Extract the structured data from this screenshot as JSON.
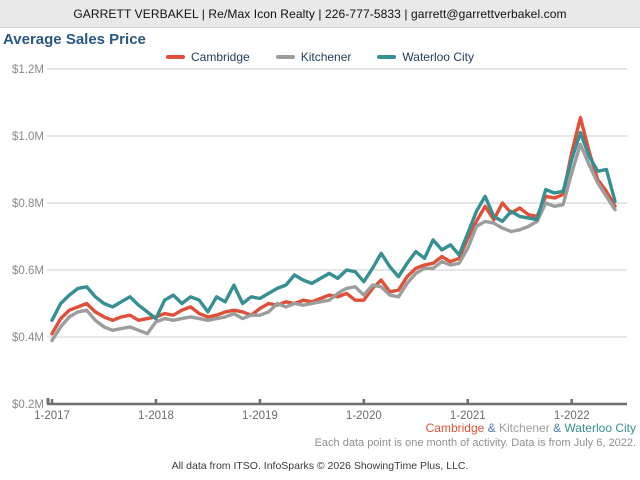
{
  "header": {
    "text": "GARRETT VERBAKEL | Re/Max Icon Realty | 226-777-5833 | garrett@garrettverbakel.com"
  },
  "title": "Average Sales Price",
  "colors": {
    "cambridge": "#e04f38",
    "kitchener": "#9c9e9d",
    "waterloo": "#368f92",
    "ampersand": "#4e7fae",
    "title_blue": "#2a5783",
    "grid": "#cccccc",
    "axis": "#6f6f6f",
    "y_label": "#8a8a8a",
    "x_label": "#6b6b6b"
  },
  "legend": {
    "items": [
      {
        "label": "Cambridge",
        "color": "#e04f38"
      },
      {
        "label": "Kitchener",
        "color": "#9c9e9d"
      },
      {
        "label": "Waterloo City",
        "color": "#368f92"
      }
    ]
  },
  "footer": {
    "separator": "&",
    "activity_note": "Each data point is one month of activity. Data is from July 6, 2022.",
    "copyright": "All data from ITSO. InfoSparks © 2026 ShowingTime Plus, LLC."
  },
  "chart_data": {
    "type": "line",
    "title": "Average Sales Price",
    "ylabel": "",
    "xlabel": "",
    "y_unit": "$M",
    "ylim": [
      0.2,
      1.2
    ],
    "y_tick_values": [
      0.2,
      0.4,
      0.6,
      0.8,
      1.0,
      1.2
    ],
    "y_tick_labels": [
      "$0.2M",
      "$0.4M",
      "$0.6M",
      "$0.8M",
      "$1.0M",
      "$1.2M"
    ],
    "x_tick_labels": [
      "1-2017",
      "1-2018",
      "1-2019",
      "1-2020",
      "1-2021",
      "1-2022"
    ],
    "grid": "horizontal",
    "legend_position": "top-center",
    "months": [
      "1-2017",
      "2-2017",
      "3-2017",
      "4-2017",
      "5-2017",
      "6-2017",
      "7-2017",
      "8-2017",
      "9-2017",
      "10-2017",
      "11-2017",
      "12-2017",
      "1-2018",
      "2-2018",
      "3-2018",
      "4-2018",
      "5-2018",
      "6-2018",
      "7-2018",
      "8-2018",
      "9-2018",
      "10-2018",
      "11-2018",
      "12-2018",
      "1-2019",
      "2-2019",
      "3-2019",
      "4-2019",
      "5-2019",
      "6-2019",
      "7-2019",
      "8-2019",
      "9-2019",
      "10-2019",
      "11-2019",
      "12-2019",
      "1-2020",
      "2-2020",
      "3-2020",
      "4-2020",
      "5-2020",
      "6-2020",
      "7-2020",
      "8-2020",
      "9-2020",
      "10-2020",
      "11-2020",
      "12-2020",
      "1-2021",
      "2-2021",
      "3-2021",
      "4-2021",
      "5-2021",
      "6-2021",
      "7-2021",
      "8-2021",
      "9-2021",
      "10-2021",
      "11-2021",
      "12-2021",
      "1-2022",
      "2-2022",
      "3-2022",
      "4-2022",
      "5-2022",
      "6-2022"
    ],
    "series": [
      {
        "name": "Cambridge",
        "color": "#e04f38",
        "values": [
          0.41,
          0.455,
          0.48,
          0.49,
          0.5,
          0.475,
          0.46,
          0.45,
          0.46,
          0.465,
          0.45,
          0.455,
          0.46,
          0.47,
          0.465,
          0.48,
          0.49,
          0.47,
          0.46,
          0.465,
          0.475,
          0.48,
          0.475,
          0.465,
          0.485,
          0.5,
          0.495,
          0.505,
          0.5,
          0.51,
          0.505,
          0.515,
          0.525,
          0.52,
          0.53,
          0.51,
          0.51,
          0.545,
          0.57,
          0.535,
          0.54,
          0.58,
          0.605,
          0.615,
          0.62,
          0.64,
          0.625,
          0.635,
          0.695,
          0.745,
          0.79,
          0.75,
          0.8,
          0.77,
          0.785,
          0.765,
          0.76,
          0.82,
          0.815,
          0.825,
          0.95,
          1.055,
          0.955,
          0.87,
          0.835,
          0.79
        ]
      },
      {
        "name": "Kitchener",
        "color": "#9c9e9d",
        "values": [
          0.39,
          0.43,
          0.46,
          0.475,
          0.48,
          0.45,
          0.43,
          0.42,
          0.425,
          0.43,
          0.42,
          0.41,
          0.445,
          0.455,
          0.45,
          0.455,
          0.46,
          0.455,
          0.45,
          0.455,
          0.46,
          0.47,
          0.455,
          0.465,
          0.465,
          0.475,
          0.5,
          0.49,
          0.5,
          0.495,
          0.5,
          0.505,
          0.51,
          0.53,
          0.545,
          0.55,
          0.525,
          0.555,
          0.55,
          0.525,
          0.52,
          0.56,
          0.59,
          0.605,
          0.605,
          0.625,
          0.615,
          0.62,
          0.665,
          0.73,
          0.745,
          0.74,
          0.725,
          0.715,
          0.72,
          0.73,
          0.745,
          0.8,
          0.79,
          0.795,
          0.89,
          0.975,
          0.915,
          0.86,
          0.82,
          0.78
        ]
      },
      {
        "name": "Waterloo City",
        "color": "#368f92",
        "values": [
          0.45,
          0.5,
          0.525,
          0.545,
          0.55,
          0.52,
          0.5,
          0.49,
          0.505,
          0.52,
          0.495,
          0.475,
          0.455,
          0.51,
          0.525,
          0.5,
          0.52,
          0.51,
          0.475,
          0.52,
          0.505,
          0.555,
          0.5,
          0.52,
          0.515,
          0.53,
          0.545,
          0.555,
          0.585,
          0.57,
          0.56,
          0.575,
          0.59,
          0.575,
          0.6,
          0.595,
          0.565,
          0.605,
          0.65,
          0.61,
          0.58,
          0.62,
          0.655,
          0.635,
          0.69,
          0.66,
          0.675,
          0.645,
          0.71,
          0.775,
          0.82,
          0.76,
          0.745,
          0.775,
          0.76,
          0.755,
          0.75,
          0.84,
          0.83,
          0.835,
          0.93,
          1.01,
          0.94,
          0.895,
          0.9,
          0.805
        ]
      }
    ]
  }
}
